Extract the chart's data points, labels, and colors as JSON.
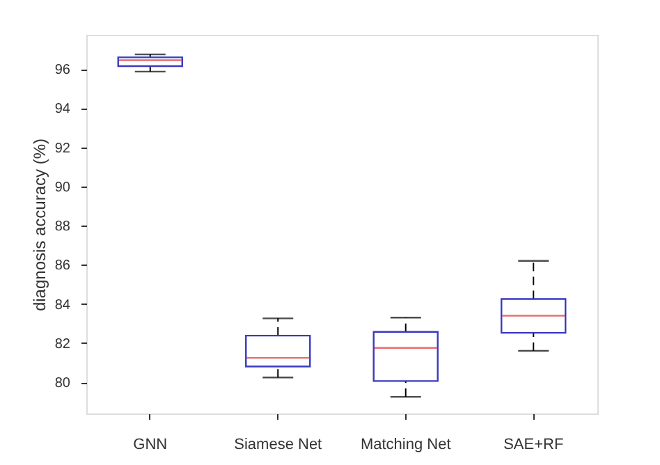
{
  "chart_data": {
    "type": "box",
    "ylabel": "diagnosis accuracy (%)",
    "categories": [
      "GNN",
      "Siamese Net",
      "Matching Net",
      "SAE+RF"
    ],
    "color": "#3a3ac0",
    "boxes": [
      {
        "low": 95.87,
        "q1": 96.15,
        "median": 96.45,
        "q3": 96.6,
        "high": 96.75
      },
      {
        "low": 80.24,
        "q1": 80.8,
        "median": 81.24,
        "q3": 82.38,
        "high": 83.26
      },
      {
        "low": 79.25,
        "q1": 80.06,
        "median": 81.75,
        "q3": 82.57,
        "high": 83.3
      },
      {
        "low": 81.6,
        "q1": 82.52,
        "median": 83.4,
        "q3": 84.25,
        "high": 86.2
      }
    ],
    "ylim": [
      78.4,
      97.75
    ],
    "yticks": [
      80,
      82,
      84,
      86,
      88,
      90,
      92,
      94,
      96
    ]
  }
}
